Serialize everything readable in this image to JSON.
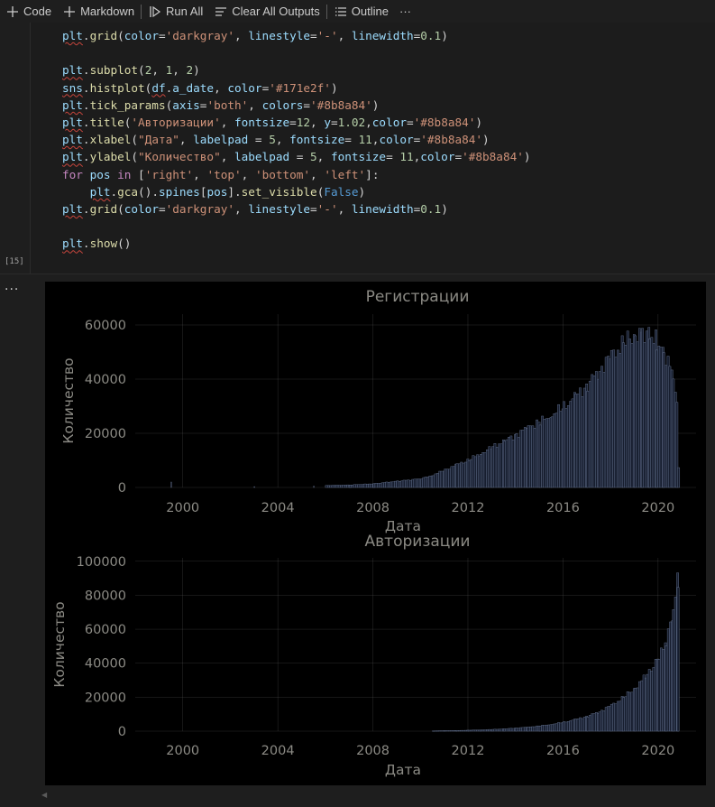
{
  "toolbar": {
    "buttons": [
      {
        "icon": "plus-icon",
        "label": "Code"
      },
      {
        "icon": "plus-icon",
        "label": "Markdown"
      },
      {
        "icon": "run-all-icon",
        "label": "Run All"
      },
      {
        "icon": "clear-all-icon",
        "label": "Clear All Outputs"
      },
      {
        "icon": "outline-icon",
        "label": "Outline"
      }
    ],
    "more": "···"
  },
  "cell": {
    "execution_count": "[15]",
    "code_lines": [
      "plt.grid(color='darkgray', linestyle='-', linewidth=0.1)",
      "",
      "plt.subplot(2, 1, 2)",
      "sns.histplot(df.a_date, color='#171e2f')",
      "plt.tick_params(axis='both', colors='#8b8a84')",
      "plt.title('Авторизации', fontsize=12, y=1.02,color='#8b8a84')",
      "plt.xlabel(\"Дата\", labelpad = 5, fontsize= 11,color='#8b8a84')",
      "plt.ylabel(\"Количество\", labelpad = 5, fontsize= 11,color='#8b8a84')",
      "for pos in ['right', 'top', 'bottom', 'left']:",
      "    plt.gca().spines[pos].set_visible(False)",
      "plt.grid(color='darkgray', linestyle='-', linewidth=0.1)",
      "",
      "plt.show()"
    ]
  },
  "output": {
    "more": "..."
  },
  "colors": {
    "figure_bg": "#000000",
    "text": "#8b8a84",
    "bars": "#171e2f",
    "bar_edge": "#6a7896",
    "grid": "#a9a9a9"
  },
  "chart_data": [
    {
      "type": "bar",
      "title": "Регистрации",
      "xlabel": "Дата",
      "ylabel": "Количество",
      "xlim": [
        1998.0,
        2021.6
      ],
      "ylim": [
        0,
        64000
      ],
      "xticks": [
        2000,
        2004,
        2008,
        2012,
        2016,
        2020
      ],
      "yticks": [
        0,
        20000,
        40000,
        60000
      ],
      "grid": true,
      "x": [
        1999.5,
        2003.0,
        2005.5,
        2006.0,
        2007.0,
        2008.0,
        2009.0,
        2010.0,
        2010.5,
        2011.0,
        2011.5,
        2012.0,
        2012.5,
        2013.0,
        2013.5,
        2014.0,
        2014.5,
        2015.0,
        2015.5,
        2016.0,
        2016.5,
        2017.0,
        2017.5,
        2018.0,
        2018.5,
        2019.0,
        2019.3,
        2019.6,
        2019.9,
        2020.2,
        2020.45,
        2020.6,
        2020.75,
        2020.82
      ],
      "values": [
        2000,
        300,
        500,
        800,
        1000,
        1500,
        2500,
        3500,
        5000,
        7000,
        9000,
        11000,
        13500,
        16000,
        18500,
        21000,
        24000,
        26000,
        29000,
        32000,
        36000,
        41000,
        47000,
        52000,
        57000,
        61000,
        62000,
        61000,
        58000,
        54000,
        48000,
        42000,
        35000,
        8000
      ]
    },
    {
      "type": "bar",
      "title": "Авторизации",
      "xlabel": "Дата",
      "ylabel": "Количество",
      "xlim": [
        1998.0,
        2021.6
      ],
      "ylim": [
        0,
        102000
      ],
      "xticks": [
        2000,
        2004,
        2008,
        2012,
        2016,
        2020
      ],
      "yticks": [
        0,
        20000,
        40000,
        60000,
        80000,
        100000
      ],
      "grid": true,
      "x": [
        2010.5,
        2011.0,
        2011.5,
        2012.0,
        2012.5,
        2013.0,
        2013.5,
        2014.0,
        2014.5,
        2015.0,
        2015.5,
        2016.0,
        2016.5,
        2017.0,
        2017.5,
        2018.0,
        2018.5,
        2019.0,
        2019.5,
        2020.0,
        2020.3,
        2020.6,
        2020.8
      ],
      "values": [
        200,
        300,
        400,
        600,
        800,
        1100,
        1500,
        2000,
        2600,
        3400,
        4400,
        5700,
        7400,
        9600,
        12500,
        16300,
        21200,
        27600,
        35900,
        46700,
        56000,
        75000,
        97000
      ]
    }
  ]
}
